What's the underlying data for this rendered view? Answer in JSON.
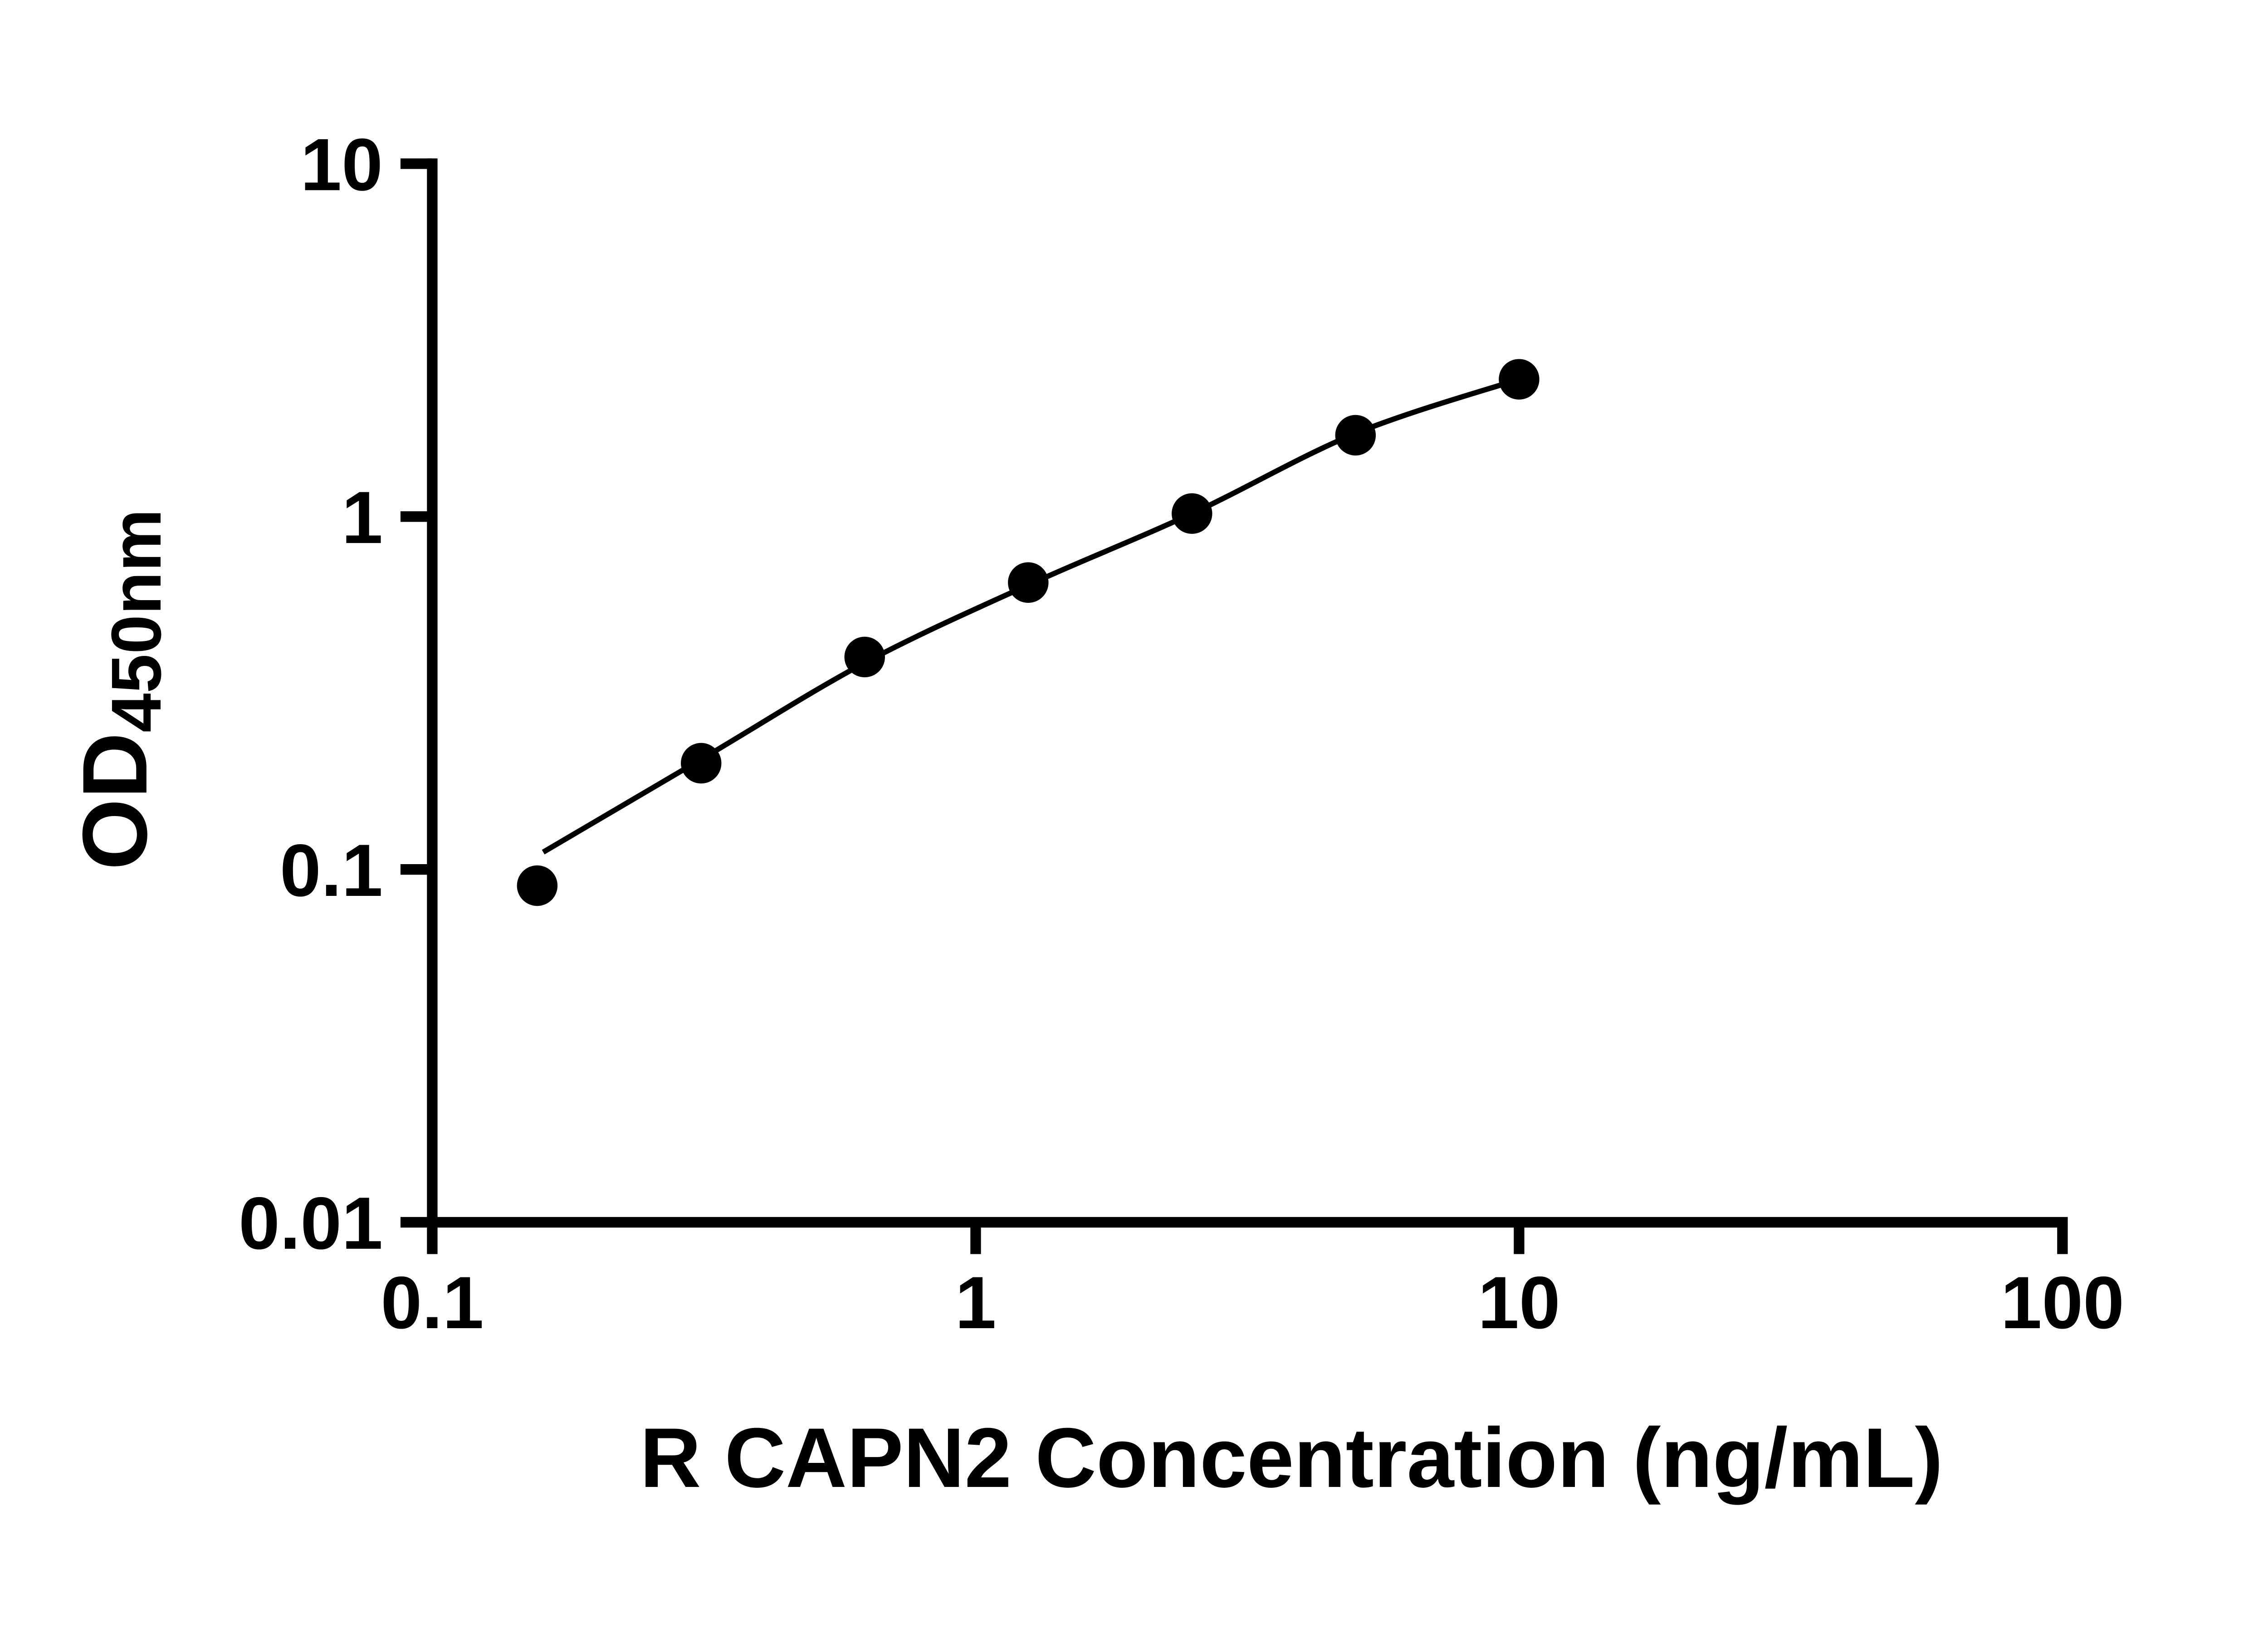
{
  "chart_data": {
    "type": "scatter",
    "title": "",
    "xlabel": "R CAPN2 Concentration (ng/mL)",
    "ylabel_main": "OD",
    "ylabel_sub": "450nm",
    "x_scale": "log",
    "y_scale": "log",
    "xlim": [
      0.1,
      100
    ],
    "ylim": [
      0.01,
      10
    ],
    "grid": false,
    "legend": "none",
    "x_ticks": [
      {
        "value": 0.1,
        "label": "0.1"
      },
      {
        "value": 1,
        "label": "1"
      },
      {
        "value": 10,
        "label": "10"
      },
      {
        "value": 100,
        "label": "100"
      }
    ],
    "y_ticks": [
      {
        "value": 0.01,
        "label": "0.01"
      },
      {
        "value": 0.1,
        "label": "0.1"
      },
      {
        "value": 1,
        "label": "1"
      },
      {
        "value": 10,
        "label": "10"
      }
    ],
    "points": [
      [
        0.156,
        0.09
      ],
      [
        0.3125,
        0.2
      ],
      [
        0.625,
        0.4
      ],
      [
        1.25,
        0.65
      ],
      [
        2.5,
        1.02
      ],
      [
        5,
        1.7
      ],
      [
        10,
        2.45
      ]
    ],
    "fit_curve": [
      [
        0.16,
        0.112
      ],
      [
        0.3125,
        0.205
      ],
      [
        0.625,
        0.385
      ],
      [
        1.25,
        0.64
      ],
      [
        2.5,
        1.02
      ],
      [
        5,
        1.72
      ],
      [
        10,
        2.45
      ]
    ],
    "marker_color": "#000000",
    "line_color": "#000000",
    "axis_color": "#000000",
    "background_color": "#ffffff"
  }
}
